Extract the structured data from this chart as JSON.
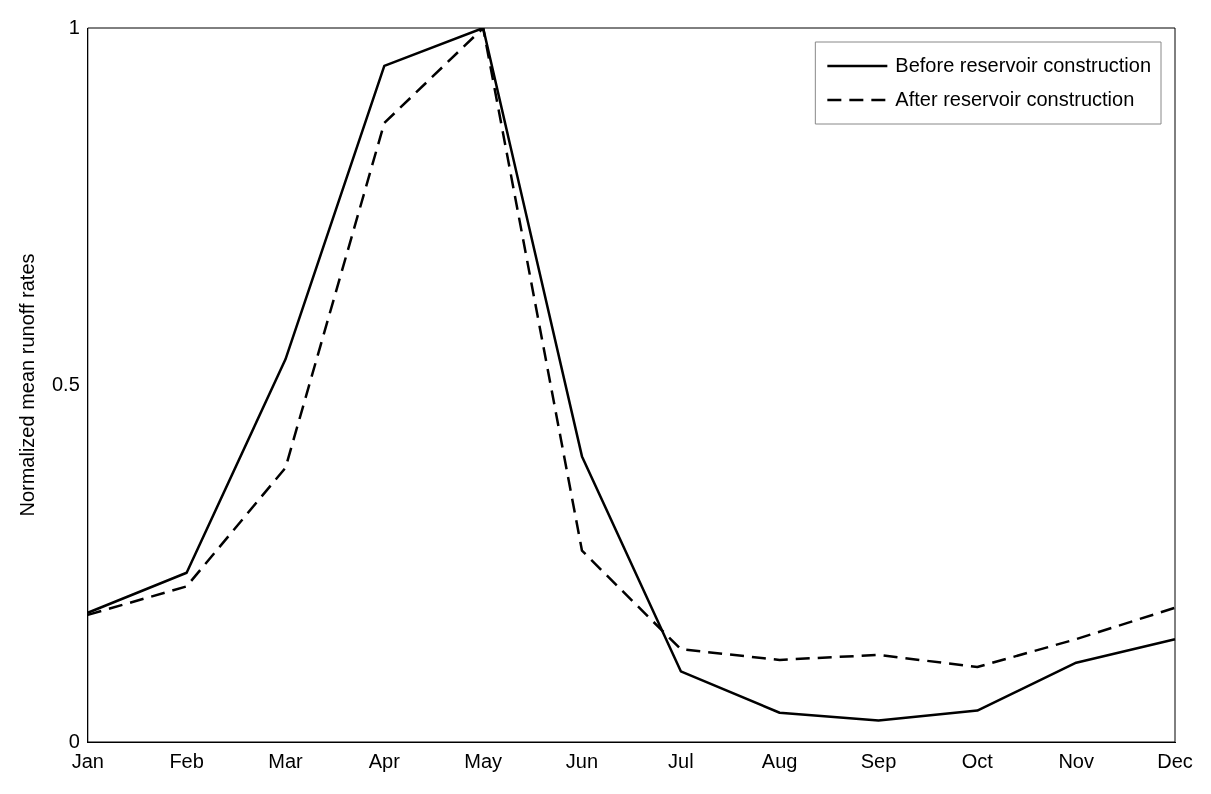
{
  "chart_data": {
    "type": "line",
    "ylabel": "Normalized mean runoff rates",
    "categories": [
      "Jan",
      "Feb",
      "Mar",
      "Apr",
      "May",
      "Jun",
      "Jul",
      "Aug",
      "Sep",
      "Oct",
      "Nov",
      "Dec"
    ],
    "series": [
      {
        "name": "Before reservoir construction",
        "color": "#000000",
        "line_style": "solid",
        "values": [
          0.181,
          0.237,
          0.536,
          0.947,
          1.0,
          0.4,
          0.099,
          0.041,
          0.03,
          0.044,
          0.111,
          0.144
        ]
      },
      {
        "name": "After reservoir construction",
        "color": "#000000",
        "line_style": "dashed",
        "values": [
          0.178,
          0.218,
          0.384,
          0.867,
          1.0,
          0.268,
          0.13,
          0.115,
          0.122,
          0.105,
          0.144,
          0.188
        ]
      }
    ],
    "ylim": [
      0,
      1
    ],
    "yticks": [
      0,
      0.5,
      1
    ],
    "grid": false,
    "legend": "top right",
    "marker": "none"
  }
}
